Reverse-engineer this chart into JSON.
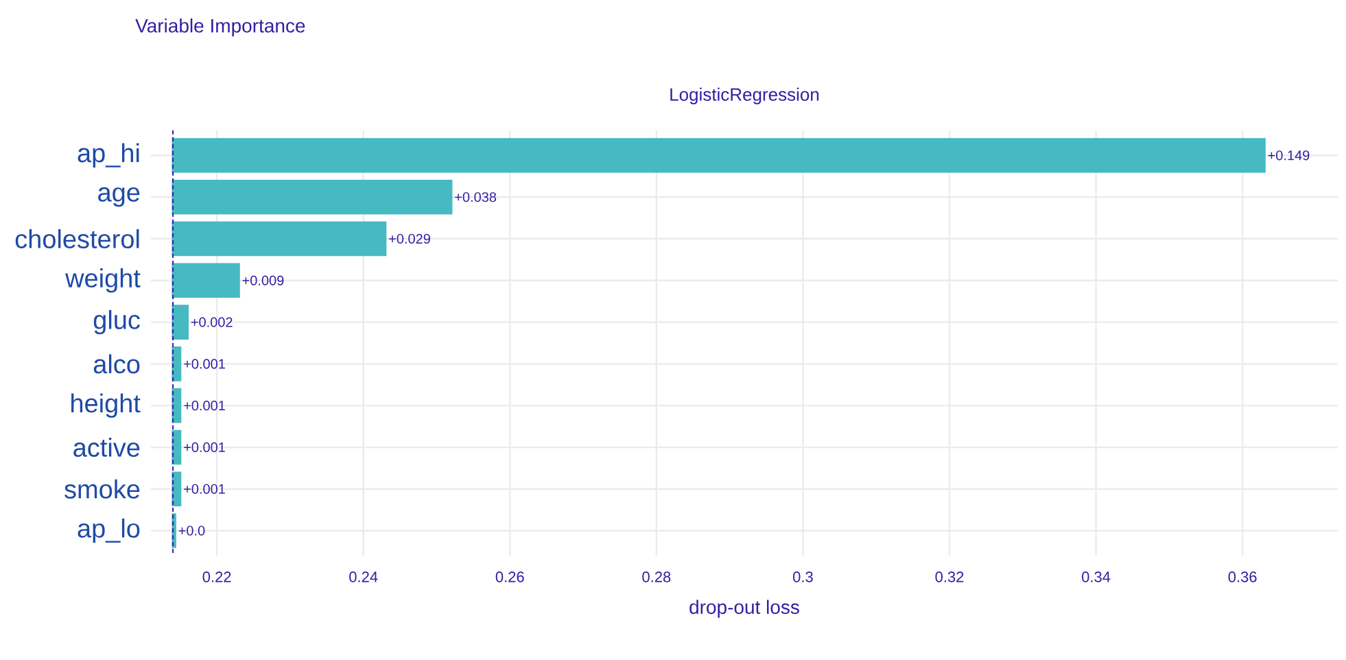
{
  "chart_data": {
    "type": "bar",
    "orientation": "horizontal",
    "title": "Variable Importance",
    "subtitle": "LogisticRegression",
    "xlabel": "drop-out loss",
    "categories": [
      "ap_hi",
      "age",
      "cholesterol",
      "weight",
      "gluc",
      "alco",
      "height",
      "active",
      "smoke",
      "ap_lo"
    ],
    "values": [
      0.149,
      0.038,
      0.029,
      0.009,
      0.002,
      0.001,
      0.001,
      0.001,
      0.001,
      0.0003
    ],
    "base": [
      0.214,
      0.214,
      0.214,
      0.214,
      0.214,
      0.214,
      0.214,
      0.214,
      0.214,
      0.214
    ],
    "value_labels": [
      "+0.149",
      "+0.038",
      "+0.029",
      "+0.009",
      "+0.002",
      "+0.001",
      "+0.001",
      "+0.001",
      "+0.001",
      "+0.0"
    ],
    "color": "#46bac2",
    "xlim": [
      0.211,
      0.373
    ],
    "xticks": [
      0.22,
      0.24,
      0.26,
      0.28,
      0.3,
      0.32,
      0.34,
      0.36
    ],
    "ref_lines": [
      {
        "axis": "x",
        "value": 0.214,
        "color": "#371ea3",
        "line_style": "dashed"
      }
    ],
    "grid": true
  }
}
